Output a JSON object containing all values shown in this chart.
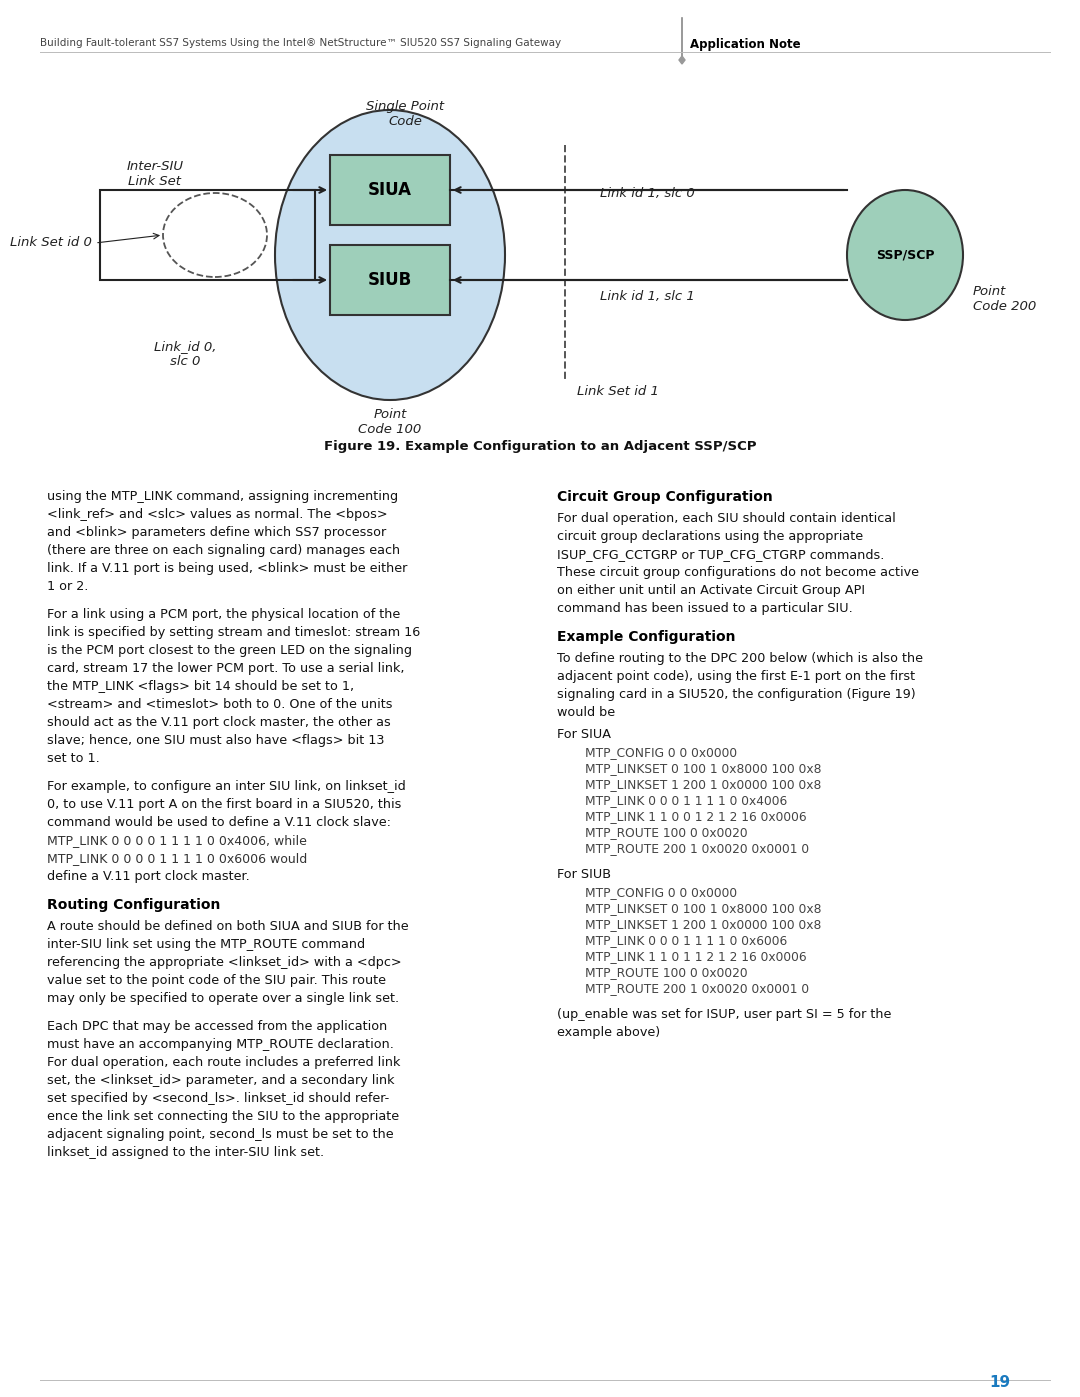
{
  "page_width": 10.8,
  "page_height": 13.97,
  "dpi": 100,
  "bg_color": "#ffffff",
  "header_text": "Building Fault-tolerant SS7 Systems Using the Intel® NetStructure™ SIU520 SS7 Signaling Gateway",
  "header_bold": "Application Note",
  "page_number": "19",
  "page_number_color": "#1a7abf",
  "figure_caption": "Figure 19. Example Configuration to an Adjacent SSP/SCP",
  "ellipse_fill": "#c8dff0",
  "ellipse_edge": "#333333",
  "box_fill": "#9ecfba",
  "box_edge": "#333333",
  "ssp_fill": "#9ecfba",
  "ssp_edge": "#333333",
  "arrow_color": "#222222",
  "dashed_color": "#555555",
  "label_color": "#222222",
  "text_color": "#111111",
  "code_color": "#333333",
  "heading_color": "#000000"
}
